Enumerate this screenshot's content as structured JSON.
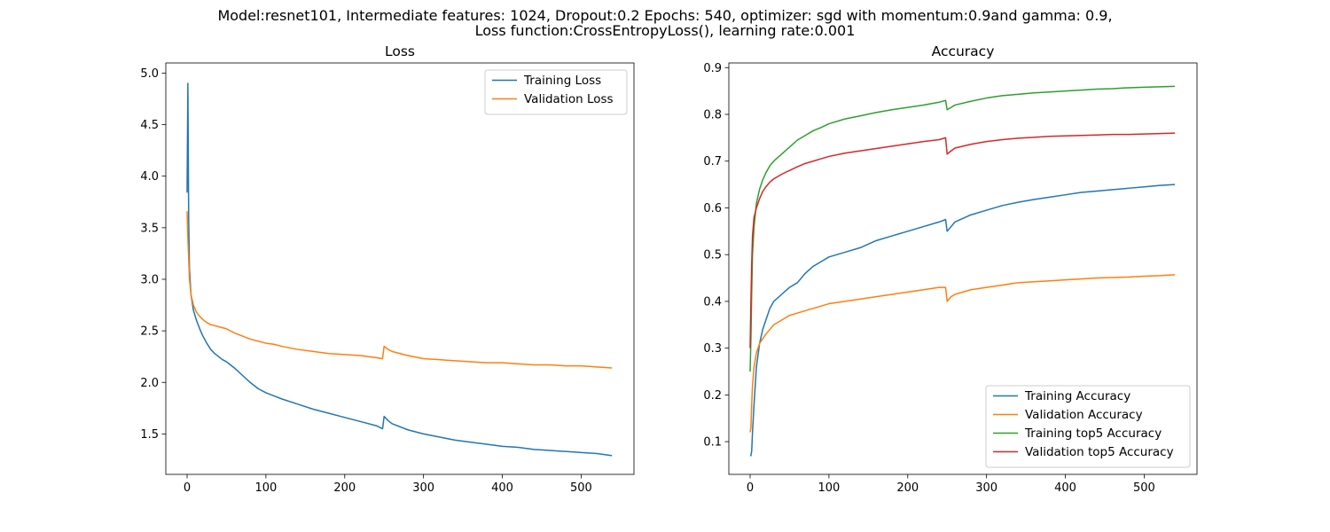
{
  "suptitle": {
    "line1": "Model:resnet101, Intermediate features: 1024, Dropout:0.2 Epochs: 540, optimizer: sgd with momentum:0.9and gamma: 0.9,",
    "line2": "Loss function:CrossEntropyLoss(), learning rate:0.001"
  },
  "chart_data": [
    {
      "type": "line",
      "title": "Loss",
      "xlabel": "",
      "ylabel": "",
      "xlim": [
        -27,
        567
      ],
      "ylim": [
        1.108,
        5.098
      ],
      "xticks": [
        0,
        100,
        200,
        300,
        400,
        500
      ],
      "yticks": [
        1.5,
        2.0,
        2.5,
        3.0,
        3.5,
        4.0,
        4.5,
        5.0
      ],
      "legend_position": "upper-right",
      "grid": false,
      "series": [
        {
          "name": "Training Loss",
          "color": "#1f77b4",
          "x": [
            0,
            1,
            2,
            3,
            5,
            8,
            12,
            16,
            20,
            25,
            30,
            35,
            40,
            45,
            50,
            55,
            60,
            70,
            80,
            90,
            100,
            110,
            120,
            140,
            160,
            180,
            200,
            220,
            240,
            248,
            250,
            255,
            260,
            280,
            300,
            320,
            340,
            360,
            380,
            400,
            420,
            440,
            460,
            480,
            500,
            520,
            539
          ],
          "y": [
            3.84,
            4.9,
            3.6,
            3.1,
            2.85,
            2.7,
            2.6,
            2.52,
            2.45,
            2.38,
            2.32,
            2.28,
            2.25,
            2.22,
            2.2,
            2.17,
            2.14,
            2.07,
            2.0,
            1.94,
            1.9,
            1.87,
            1.84,
            1.79,
            1.74,
            1.7,
            1.66,
            1.62,
            1.58,
            1.55,
            1.67,
            1.63,
            1.6,
            1.54,
            1.5,
            1.47,
            1.44,
            1.42,
            1.4,
            1.38,
            1.37,
            1.35,
            1.34,
            1.33,
            1.32,
            1.31,
            1.29
          ]
        },
        {
          "name": "Validation Loss",
          "color": "#ff7f0e",
          "x": [
            0,
            1,
            2,
            3,
            5,
            8,
            12,
            16,
            20,
            25,
            30,
            35,
            40,
            45,
            50,
            55,
            60,
            70,
            80,
            90,
            100,
            110,
            120,
            140,
            160,
            180,
            200,
            220,
            240,
            248,
            250,
            255,
            260,
            280,
            300,
            320,
            340,
            360,
            380,
            400,
            420,
            440,
            460,
            480,
            500,
            520,
            539
          ],
          "y": [
            3.66,
            3.4,
            3.2,
            3.0,
            2.85,
            2.75,
            2.68,
            2.64,
            2.61,
            2.58,
            2.56,
            2.55,
            2.54,
            2.53,
            2.52,
            2.5,
            2.48,
            2.45,
            2.42,
            2.4,
            2.38,
            2.37,
            2.35,
            2.32,
            2.3,
            2.28,
            2.27,
            2.26,
            2.24,
            2.23,
            2.35,
            2.32,
            2.3,
            2.26,
            2.23,
            2.22,
            2.21,
            2.2,
            2.19,
            2.19,
            2.18,
            2.17,
            2.17,
            2.16,
            2.16,
            2.15,
            2.14
          ]
        }
      ]
    },
    {
      "type": "line",
      "title": "Accuracy",
      "xlabel": "",
      "ylabel": "",
      "xlim": [
        -27,
        567
      ],
      "ylim": [
        0.03,
        0.91
      ],
      "xticks": [
        0,
        100,
        200,
        300,
        400,
        500
      ],
      "yticks": [
        0.1,
        0.2,
        0.3,
        0.4,
        0.5,
        0.6,
        0.7,
        0.8,
        0.9
      ],
      "legend_position": "lower-right",
      "grid": false,
      "series": [
        {
          "name": "Training Accuracy",
          "color": "#1f77b4",
          "x": [
            0,
            1,
            2,
            3,
            5,
            8,
            12,
            16,
            20,
            25,
            30,
            40,
            50,
            60,
            70,
            80,
            90,
            100,
            120,
            140,
            160,
            180,
            200,
            220,
            240,
            248,
            250,
            255,
            260,
            280,
            300,
            320,
            340,
            360,
            380,
            400,
            420,
            440,
            460,
            480,
            500,
            520,
            539
          ],
          "y": [
            0.07,
            0.07,
            0.08,
            0.12,
            0.18,
            0.26,
            0.31,
            0.34,
            0.36,
            0.385,
            0.4,
            0.415,
            0.43,
            0.44,
            0.46,
            0.475,
            0.485,
            0.495,
            0.505,
            0.515,
            0.53,
            0.54,
            0.55,
            0.56,
            0.57,
            0.575,
            0.55,
            0.56,
            0.57,
            0.585,
            0.595,
            0.605,
            0.612,
            0.618,
            0.623,
            0.628,
            0.633,
            0.636,
            0.639,
            0.642,
            0.645,
            0.648,
            0.65
          ]
        },
        {
          "name": "Validation Accuracy",
          "color": "#ff7f0e",
          "x": [
            0,
            1,
            2,
            3,
            5,
            8,
            12,
            16,
            20,
            25,
            30,
            40,
            50,
            60,
            70,
            80,
            90,
            100,
            120,
            140,
            160,
            180,
            200,
            220,
            240,
            248,
            250,
            255,
            260,
            280,
            300,
            320,
            340,
            360,
            380,
            400,
            420,
            440,
            460,
            480,
            500,
            520,
            539
          ],
          "y": [
            0.12,
            0.13,
            0.18,
            0.22,
            0.26,
            0.29,
            0.31,
            0.32,
            0.33,
            0.34,
            0.35,
            0.36,
            0.37,
            0.375,
            0.38,
            0.385,
            0.39,
            0.395,
            0.4,
            0.405,
            0.41,
            0.415,
            0.42,
            0.425,
            0.43,
            0.43,
            0.4,
            0.41,
            0.415,
            0.425,
            0.43,
            0.435,
            0.44,
            0.442,
            0.444,
            0.446,
            0.448,
            0.45,
            0.451,
            0.452,
            0.454,
            0.455,
            0.457
          ]
        },
        {
          "name": "Training top5 Accuracy",
          "color": "#2ca02c",
          "x": [
            0,
            1,
            2,
            3,
            5,
            8,
            12,
            16,
            20,
            25,
            30,
            40,
            50,
            60,
            70,
            80,
            90,
            100,
            120,
            140,
            160,
            180,
            200,
            220,
            240,
            248,
            250,
            255,
            260,
            280,
            300,
            320,
            340,
            360,
            380,
            400,
            420,
            440,
            460,
            480,
            500,
            520,
            539
          ],
          "y": [
            0.25,
            0.32,
            0.42,
            0.5,
            0.56,
            0.61,
            0.64,
            0.66,
            0.675,
            0.69,
            0.7,
            0.715,
            0.73,
            0.745,
            0.755,
            0.765,
            0.772,
            0.78,
            0.79,
            0.797,
            0.804,
            0.81,
            0.815,
            0.82,
            0.826,
            0.83,
            0.81,
            0.815,
            0.82,
            0.828,
            0.835,
            0.84,
            0.843,
            0.846,
            0.848,
            0.85,
            0.852,
            0.854,
            0.855,
            0.857,
            0.858,
            0.859,
            0.86
          ]
        },
        {
          "name": "Validation top5 Accuracy",
          "color": "#d62728",
          "x": [
            0,
            1,
            2,
            3,
            5,
            8,
            12,
            16,
            20,
            25,
            30,
            40,
            50,
            60,
            70,
            80,
            90,
            100,
            120,
            140,
            160,
            180,
            200,
            220,
            240,
            248,
            250,
            255,
            260,
            280,
            300,
            320,
            340,
            360,
            380,
            400,
            420,
            440,
            460,
            480,
            500,
            520,
            539
          ],
          "y": [
            0.3,
            0.4,
            0.48,
            0.54,
            0.58,
            0.6,
            0.62,
            0.635,
            0.645,
            0.655,
            0.662,
            0.672,
            0.68,
            0.688,
            0.695,
            0.7,
            0.705,
            0.71,
            0.717,
            0.722,
            0.727,
            0.732,
            0.737,
            0.742,
            0.746,
            0.75,
            0.715,
            0.722,
            0.728,
            0.736,
            0.742,
            0.746,
            0.749,
            0.751,
            0.753,
            0.754,
            0.755,
            0.756,
            0.757,
            0.757,
            0.758,
            0.759,
            0.76
          ]
        }
      ]
    }
  ]
}
